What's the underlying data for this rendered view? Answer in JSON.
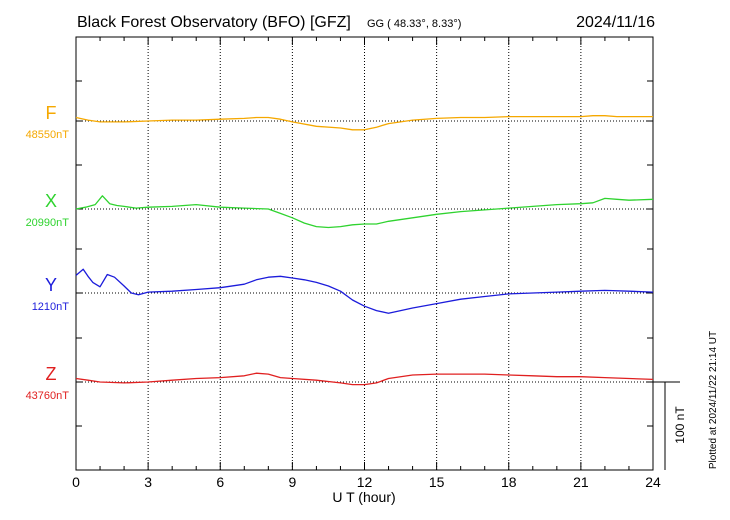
{
  "header": {
    "title": "Black Forest Observatory (BFO)  [GFZ]",
    "coords": "GG ( 48.33°,   8.33°)",
    "date": "2024/11/16"
  },
  "footer": {
    "plotted_at": "Plotted at 2024/11/22 21:14 UT"
  },
  "chart_data": {
    "type": "line",
    "title": "Black Forest Observatory (BFO)  [GFZ]",
    "xlabel": "U T (hour)",
    "xlim": [
      0,
      24
    ],
    "xticks": [
      "0",
      "3",
      "6",
      "9",
      "12",
      "15",
      "18",
      "21",
      "24"
    ],
    "grid": true,
    "scale_bar": {
      "label": "100 nT",
      "value_nT": 100
    },
    "series": [
      {
        "name": "F",
        "baseline_label": "48550nT",
        "baseline_nT": 48550,
        "color": "#f5a800",
        "x": [
          0,
          0.5,
          1,
          1.5,
          2,
          3,
          4,
          5,
          6,
          7,
          7.5,
          8,
          8.5,
          9,
          10,
          11,
          11.5,
          12,
          12.5,
          13,
          14,
          15,
          16,
          17,
          18,
          19,
          20,
          21,
          21.5,
          22,
          22.5,
          23,
          24
        ],
        "y": [
          48554,
          48551,
          48549,
          48549,
          48549,
          48550,
          48551,
          48551,
          48552,
          48553,
          48554,
          48554,
          48552,
          48549,
          48544,
          48542,
          48540,
          48540,
          48543,
          48547,
          48551,
          48553,
          48554,
          48554,
          48555,
          48555,
          48555,
          48555,
          48556,
          48556,
          48555,
          48555,
          48555
        ]
      },
      {
        "name": "X",
        "baseline_label": "20990nT",
        "baseline_nT": 20990,
        "color": "#2fd32f",
        "x": [
          0,
          0.4,
          0.8,
          1.1,
          1.4,
          1.7,
          2,
          2.5,
          3,
          4,
          5,
          6,
          7,
          8,
          8.5,
          9,
          9.5,
          10,
          10.5,
          11,
          11.5,
          12,
          12.5,
          13,
          14,
          15,
          16,
          17,
          18,
          19,
          20,
          21,
          21.5,
          22,
          22.5,
          23,
          24
        ],
        "y": [
          20990,
          20992,
          20995,
          21005,
          20996,
          20994,
          20993,
          20991,
          20992,
          20993,
          20995,
          20992,
          20991,
          20990,
          20985,
          20980,
          20974,
          20970,
          20969,
          20970,
          20972,
          20973,
          20973,
          20976,
          20980,
          20984,
          20987,
          20989,
          20991,
          20993,
          20995,
          20996,
          20997,
          21002,
          21001,
          21000,
          21001
        ]
      },
      {
        "name": "Y",
        "baseline_label": "1210nT",
        "baseline_nT": 1210,
        "color": "#1c1cdb",
        "x": [
          0,
          0.3,
          0.5,
          0.7,
          1,
          1.3,
          1.6,
          2,
          2.3,
          2.6,
          3,
          4,
          5,
          6,
          7,
          7.5,
          8,
          8.5,
          9,
          9.5,
          10,
          10.5,
          11,
          11.5,
          12,
          12.5,
          13,
          13.5,
          14,
          15,
          16,
          17,
          18,
          19,
          20,
          21,
          22,
          23,
          24
        ],
        "y": [
          1230,
          1237,
          1229,
          1222,
          1217,
          1231,
          1228,
          1218,
          1210,
          1208,
          1211,
          1212,
          1214,
          1216,
          1220,
          1225,
          1228,
          1229,
          1227,
          1225,
          1222,
          1218,
          1212,
          1202,
          1195,
          1190,
          1187,
          1190,
          1193,
          1198,
          1203,
          1206,
          1209,
          1210,
          1211,
          1212,
          1213,
          1212,
          1211
        ]
      },
      {
        "name": "Z",
        "baseline_label": "43760nT",
        "baseline_nT": 43760,
        "color": "#e02020",
        "x": [
          0,
          0.5,
          1,
          2,
          3,
          4,
          5,
          6,
          7,
          7.5,
          8,
          8.5,
          9,
          10,
          11,
          11.5,
          12,
          12.5,
          13,
          14,
          15,
          16,
          17,
          18,
          19,
          20,
          21,
          22,
          23,
          24
        ],
        "y": [
          43764,
          43762,
          43760,
          43759,
          43760,
          43762,
          43764,
          43765,
          43767,
          43770,
          43769,
          43765,
          43764,
          43762,
          43759,
          43757,
          43757,
          43759,
          43764,
          43768,
          43769,
          43769,
          43769,
          43768,
          43767,
          43766,
          43766,
          43765,
          43764,
          43763
        ]
      }
    ]
  }
}
